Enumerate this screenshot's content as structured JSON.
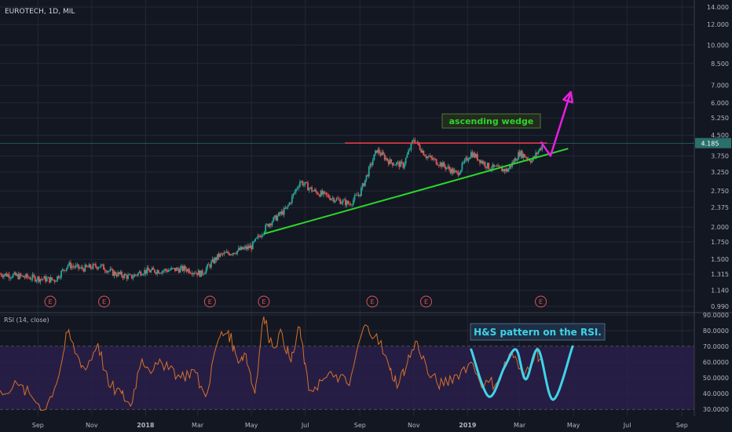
{
  "header": {
    "symbol": "EUROTECH, 1D, MIL",
    "rsi_label": "RSI (14, close)"
  },
  "annotations": {
    "wedge_label": "ascending wedge",
    "rsi_label": "H&S pattern on the RSI."
  },
  "colors": {
    "background": "#131722",
    "grid": "#242836",
    "candle_up": "#26a69a",
    "candle_down": "#ef5350",
    "resistance": "#f23645",
    "support": "#2bd62b",
    "arrow": "#e91ee0",
    "rsi_line": "#d5712a",
    "rsi_band": "#2a1f4a",
    "hs_curve": "#3fd3e8",
    "price_tag": "#2a6f6b"
  },
  "chart_data": [
    {
      "type": "candlestick",
      "title": "EUROTECH, 1D, MIL",
      "x_tick_labels": [
        "Sep",
        "Nov",
        "2018",
        "Mar",
        "May",
        "Jul",
        "Sep",
        "Nov",
        "2019",
        "Mar",
        "May",
        "Jul",
        "Sep"
      ],
      "y_tick_labels": [
        "14.000",
        "12.000",
        "10.000",
        "8.500",
        "7.000",
        "6.000",
        "5.250",
        "4.500",
        "3.750",
        "3.250",
        "2.750",
        "2.375",
        "2.000",
        "1.750",
        "1.500",
        "1.315",
        "1.140",
        "0.990"
      ],
      "y_scale": "log",
      "last_price": "4.185",
      "earnings_markers": [
        "E",
        "E",
        "E",
        "E",
        "E",
        "E",
        "E"
      ],
      "close_series": [
        {
          "date": "2017-07-20",
          "close": 1.32
        },
        {
          "date": "2017-08-20",
          "close": 1.28
        },
        {
          "date": "2017-09-20",
          "close": 1.25
        },
        {
          "date": "2017-10-05",
          "close": 1.43
        },
        {
          "date": "2017-10-20",
          "close": 1.38
        },
        {
          "date": "2017-11-10",
          "close": 1.42
        },
        {
          "date": "2017-11-25",
          "close": 1.33
        },
        {
          "date": "2017-12-15",
          "close": 1.28
        },
        {
          "date": "2017-12-28",
          "close": 1.35
        },
        {
          "date": "2018-01-20",
          "close": 1.36
        },
        {
          "date": "2018-02-15",
          "close": 1.38
        },
        {
          "date": "2018-03-05",
          "close": 1.32
        },
        {
          "date": "2018-03-25",
          "close": 1.55
        },
        {
          "date": "2018-04-15",
          "close": 1.62
        },
        {
          "date": "2018-05-01",
          "close": 1.68
        },
        {
          "date": "2018-05-20",
          "close": 2.05
        },
        {
          "date": "2018-06-10",
          "close": 2.35
        },
        {
          "date": "2018-06-25",
          "close": 3.0
        },
        {
          "date": "2018-07-10",
          "close": 2.75
        },
        {
          "date": "2018-08-01",
          "close": 2.58
        },
        {
          "date": "2018-08-20",
          "close": 2.45
        },
        {
          "date": "2018-09-01",
          "close": 2.7
        },
        {
          "date": "2018-09-20",
          "close": 3.95
        },
        {
          "date": "2018-10-05",
          "close": 3.55
        },
        {
          "date": "2018-10-20",
          "close": 3.45
        },
        {
          "date": "2018-11-01",
          "close": 4.35
        },
        {
          "date": "2018-11-15",
          "close": 3.75
        },
        {
          "date": "2018-12-01",
          "close": 3.5
        },
        {
          "date": "2018-12-20",
          "close": 3.2
        },
        {
          "date": "2019-01-05",
          "close": 3.85
        },
        {
          "date": "2019-01-25",
          "close": 3.4
        },
        {
          "date": "2019-02-15",
          "close": 3.3
        },
        {
          "date": "2019-03-01",
          "close": 3.85
        },
        {
          "date": "2019-03-15",
          "close": 3.6
        },
        {
          "date": "2019-03-28",
          "close": 4.185
        }
      ],
      "resistance_line": {
        "from": "2018-08-15",
        "to": "2019-04-01",
        "price": 4.2
      },
      "support_line": {
        "from": {
          "date": "2018-05-15",
          "price": 1.88
        },
        "to": {
          "date": "2019-04-25",
          "price": 4.0
        }
      },
      "projection_arrow": [
        {
          "date": "2019-03-25",
          "price": 4.25
        },
        {
          "date": "2019-04-05",
          "price": 3.75
        },
        {
          "date": "2019-04-28",
          "price": 6.6
        }
      ]
    },
    {
      "type": "line",
      "title": "RSI (14, close)",
      "y_tick_labels": [
        "90.0000",
        "80.0000",
        "70.0000",
        "60.0000",
        "50.0000",
        "40.0000",
        "30.0000"
      ],
      "ylim": [
        27,
        92
      ],
      "band": [
        30,
        70
      ],
      "series": [
        {
          "values": [
            {
              "date": "2017-07-20",
              "rsi": 42
            },
            {
              "date": "2017-08-10",
              "rsi": 45
            },
            {
              "date": "2017-08-25",
              "rsi": 38
            },
            {
              "date": "2017-09-10",
              "rsi": 30
            },
            {
              "date": "2017-09-25",
              "rsi": 52
            },
            {
              "date": "2017-10-05",
              "rsi": 79
            },
            {
              "date": "2017-10-15",
              "rsi": 65
            },
            {
              "date": "2017-10-25",
              "rsi": 55
            },
            {
              "date": "2017-11-08",
              "rsi": 72
            },
            {
              "date": "2017-11-20",
              "rsi": 45
            },
            {
              "date": "2017-12-05",
              "rsi": 40
            },
            {
              "date": "2017-12-15",
              "rsi": 32
            },
            {
              "date": "2017-12-28",
              "rsi": 62
            },
            {
              "date": "2018-01-10",
              "rsi": 55
            },
            {
              "date": "2018-01-25",
              "rsi": 60
            },
            {
              "date": "2018-02-10",
              "rsi": 50
            },
            {
              "date": "2018-02-25",
              "rsi": 55
            },
            {
              "date": "2018-03-10",
              "rsi": 38
            },
            {
              "date": "2018-03-25",
              "rsi": 75
            },
            {
              "date": "2018-04-05",
              "rsi": 80
            },
            {
              "date": "2018-04-15",
              "rsi": 62
            },
            {
              "date": "2018-04-25",
              "rsi": 65
            },
            {
              "date": "2018-05-05",
              "rsi": 40
            },
            {
              "date": "2018-05-15",
              "rsi": 89
            },
            {
              "date": "2018-05-25",
              "rsi": 70
            },
            {
              "date": "2018-06-05",
              "rsi": 78
            },
            {
              "date": "2018-06-15",
              "rsi": 60
            },
            {
              "date": "2018-06-25",
              "rsi": 82
            },
            {
              "date": "2018-07-05",
              "rsi": 42
            },
            {
              "date": "2018-07-20",
              "rsi": 48
            },
            {
              "date": "2018-08-05",
              "rsi": 52
            },
            {
              "date": "2018-08-20",
              "rsi": 45
            },
            {
              "date": "2018-09-05",
              "rsi": 82
            },
            {
              "date": "2018-09-20",
              "rsi": 78
            },
            {
              "date": "2018-10-05",
              "rsi": 55
            },
            {
              "date": "2018-10-15",
              "rsi": 46
            },
            {
              "date": "2018-10-25",
              "rsi": 60
            },
            {
              "date": "2018-11-05",
              "rsi": 73
            },
            {
              "date": "2018-11-20",
              "rsi": 50
            },
            {
              "date": "2018-12-05",
              "rsi": 45
            },
            {
              "date": "2018-12-20",
              "rsi": 52
            },
            {
              "date": "2019-01-05",
              "rsi": 60
            },
            {
              "date": "2019-01-20",
              "rsi": 45
            },
            {
              "date": "2019-02-05",
              "rsi": 48
            },
            {
              "date": "2019-02-20",
              "rsi": 67
            },
            {
              "date": "2019-03-05",
              "rsi": 50
            },
            {
              "date": "2019-03-20",
              "rsi": 68
            },
            {
              "date": "2019-03-28",
              "rsi": 58
            }
          ]
        }
      ],
      "hs_pattern_curve": [
        {
          "date": "2019-01-05",
          "rsi": 68
        },
        {
          "date": "2019-01-25",
          "rsi": 38
        },
        {
          "date": "2019-02-12",
          "rsi": 57
        },
        {
          "date": "2019-02-25",
          "rsi": 68
        },
        {
          "date": "2019-03-08",
          "rsi": 49
        },
        {
          "date": "2019-03-22",
          "rsi": 68
        },
        {
          "date": "2019-04-08",
          "rsi": 36
        },
        {
          "date": "2019-04-30",
          "rsi": 70
        }
      ]
    }
  ]
}
